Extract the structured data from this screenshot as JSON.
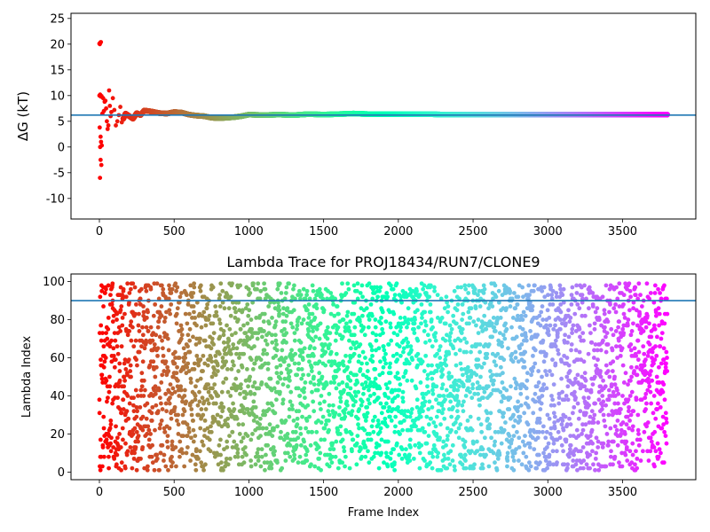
{
  "chart_data": [
    {
      "type": "scatter",
      "title": "",
      "xlabel": "",
      "ylabel": "ΔG (kT)",
      "xlim": [
        -190,
        3990
      ],
      "ylim": [
        -14,
        26
      ],
      "xticks": [
        0,
        500,
        1000,
        1500,
        2000,
        2500,
        3000,
        3500
      ],
      "yticks": [
        -10,
        -5,
        0,
        5,
        10,
        15,
        20,
        25
      ],
      "grid": false,
      "colormap": "rainbow",
      "n_points": 3800,
      "hline": {
        "y": 6.2,
        "color": "#1f77b4"
      },
      "series_points": [
        [
          0,
          20.1
        ],
        [
          3,
          20.0
        ],
        [
          6,
          20.3
        ],
        [
          10,
          20.4
        ],
        [
          0,
          10.0
        ],
        [
          5,
          10.2
        ],
        [
          10,
          9.8
        ],
        [
          14,
          9.9
        ],
        [
          2,
          3.8
        ],
        [
          8,
          2.0
        ],
        [
          11,
          1.0
        ],
        [
          16,
          0.3
        ],
        [
          4,
          -6.0
        ],
        [
          8,
          -2.5
        ],
        [
          13,
          -3.5
        ],
        [
          5,
          0.0
        ],
        [
          20,
          6.5
        ],
        [
          25,
          9.5
        ],
        [
          30,
          7.0
        ],
        [
          35,
          8.8
        ],
        [
          40,
          9.0
        ],
        [
          45,
          7.5
        ],
        [
          50,
          5.0
        ],
        [
          55,
          3.5
        ],
        [
          60,
          4.2
        ],
        [
          65,
          11.0
        ],
        [
          70,
          8.0
        ],
        [
          75,
          6.0
        ],
        [
          80,
          6.8
        ],
        [
          90,
          9.5
        ],
        [
          100,
          7.2
        ],
        [
          110,
          4.2
        ],
        [
          120,
          5.0
        ],
        [
          130,
          6.2
        ],
        [
          140,
          7.8
        ],
        [
          150,
          4.8
        ],
        [
          175,
          6.5
        ],
        [
          200,
          6.0
        ],
        [
          225,
          5.5
        ],
        [
          250,
          6.6
        ],
        [
          275,
          6.2
        ],
        [
          300,
          7.1
        ],
        [
          350,
          6.9
        ],
        [
          400,
          6.6
        ],
        [
          450,
          6.5
        ],
        [
          500,
          6.8
        ],
        [
          550,
          6.7
        ],
        [
          600,
          6.3
        ],
        [
          650,
          6.1
        ],
        [
          700,
          6.0
        ],
        [
          750,
          5.7
        ],
        [
          800,
          5.6
        ],
        [
          850,
          5.7
        ],
        [
          900,
          5.8
        ],
        [
          950,
          6.0
        ],
        [
          1000,
          6.3
        ],
        [
          1100,
          6.2
        ],
        [
          1200,
          6.3
        ],
        [
          1300,
          6.2
        ],
        [
          1400,
          6.4
        ],
        [
          1500,
          6.3
        ],
        [
          1600,
          6.4
        ],
        [
          1700,
          6.5
        ],
        [
          1800,
          6.4
        ],
        [
          1900,
          6.4
        ],
        [
          2000,
          6.4
        ],
        [
          2100,
          6.4
        ],
        [
          2200,
          6.4
        ],
        [
          2300,
          6.3
        ],
        [
          2500,
          6.3
        ],
        [
          2700,
          6.3
        ],
        [
          2900,
          6.3
        ],
        [
          3100,
          6.3
        ],
        [
          3300,
          6.3
        ],
        [
          3500,
          6.3
        ],
        [
          3799,
          6.3
        ]
      ]
    },
    {
      "type": "scatter",
      "title": "Lambda Trace for PROJ18434/RUN7/CLONE9",
      "xlabel": "Frame Index",
      "ylabel": "Lambda Index",
      "xlim": [
        -190,
        3990
      ],
      "ylim": [
        -4,
        104
      ],
      "xticks": [
        0,
        500,
        1000,
        1500,
        2000,
        2500,
        3000,
        3500
      ],
      "yticks": [
        0,
        20,
        40,
        60,
        80,
        100
      ],
      "grid": false,
      "colormap": "rainbow",
      "n_points": 3800,
      "lambda_range": [
        1,
        99
      ],
      "hline": {
        "y": 90,
        "color": "#1f77b4"
      }
    }
  ]
}
